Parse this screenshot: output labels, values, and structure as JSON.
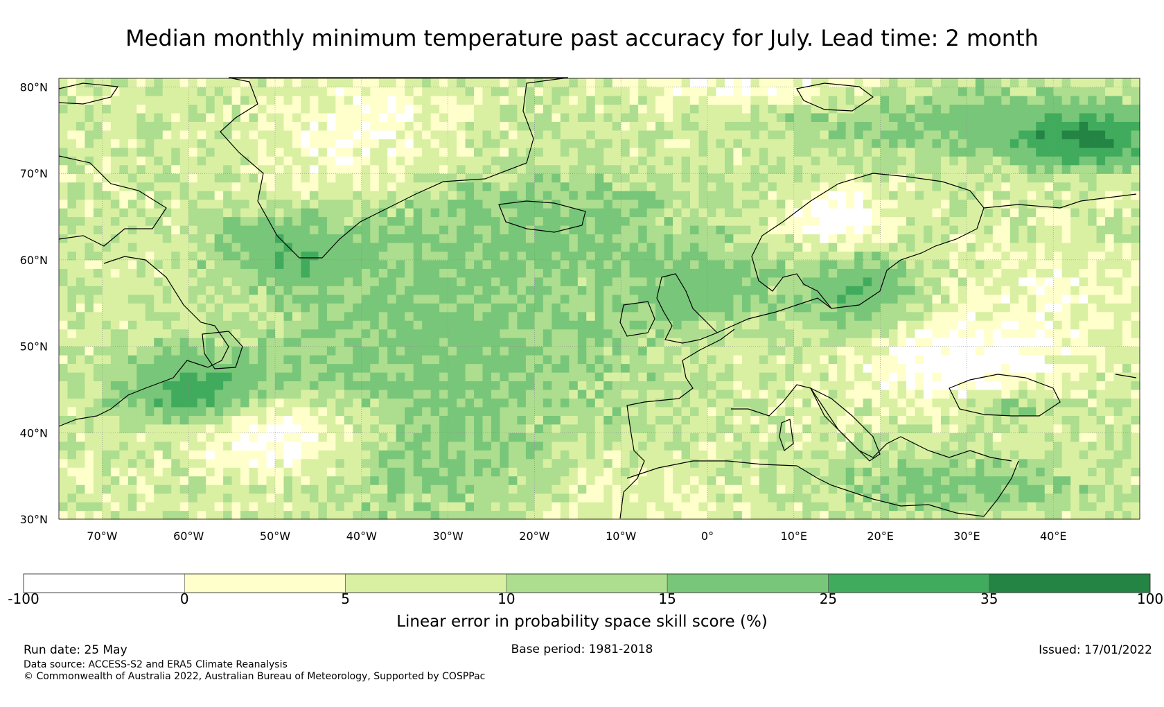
{
  "title": "Median monthly minimum temperature past accuracy for July. Lead time: 2 month",
  "map": {
    "lat_labels": [
      "80°N",
      "70°N",
      "60°N",
      "50°N",
      "40°N",
      "30°N"
    ],
    "lon_labels": [
      "70°W",
      "60°W",
      "50°W",
      "40°W",
      "30°W",
      "20°W",
      "10°W",
      "0°",
      "10°E",
      "20°E",
      "30°E",
      "40°E"
    ],
    "lat_values": [
      80,
      70,
      60,
      50,
      40,
      30
    ],
    "lon_values": [
      -70,
      -60,
      -50,
      -40,
      -30,
      -20,
      -10,
      0,
      10,
      20,
      30,
      40
    ],
    "extent": {
      "lon_min": -75,
      "lon_max": 50,
      "lat_min": 30,
      "lat_max": 81
    }
  },
  "colorbar": {
    "label": "Linear error in probability space skill score (%)",
    "ticks": [
      "-100",
      "0",
      "5",
      "10",
      "15",
      "25",
      "35",
      "100"
    ],
    "colors": [
      "#ffffff",
      "#ffffcc",
      "#d9f0a3",
      "#addd8e",
      "#78c679",
      "#41ab5d",
      "#238443"
    ]
  },
  "footer": {
    "run_date": "Run date: 25 May",
    "base_period": "Base period: 1981-2018",
    "issued": "Issued: 17/01/2022",
    "data_source": "Data source: ACCESS-S2 and ERA5 Climate Reanalysis",
    "copyright": "© Commonwealth of Australia 2022, Australian Bureau of Meteorology, Supported by COSPPac"
  }
}
